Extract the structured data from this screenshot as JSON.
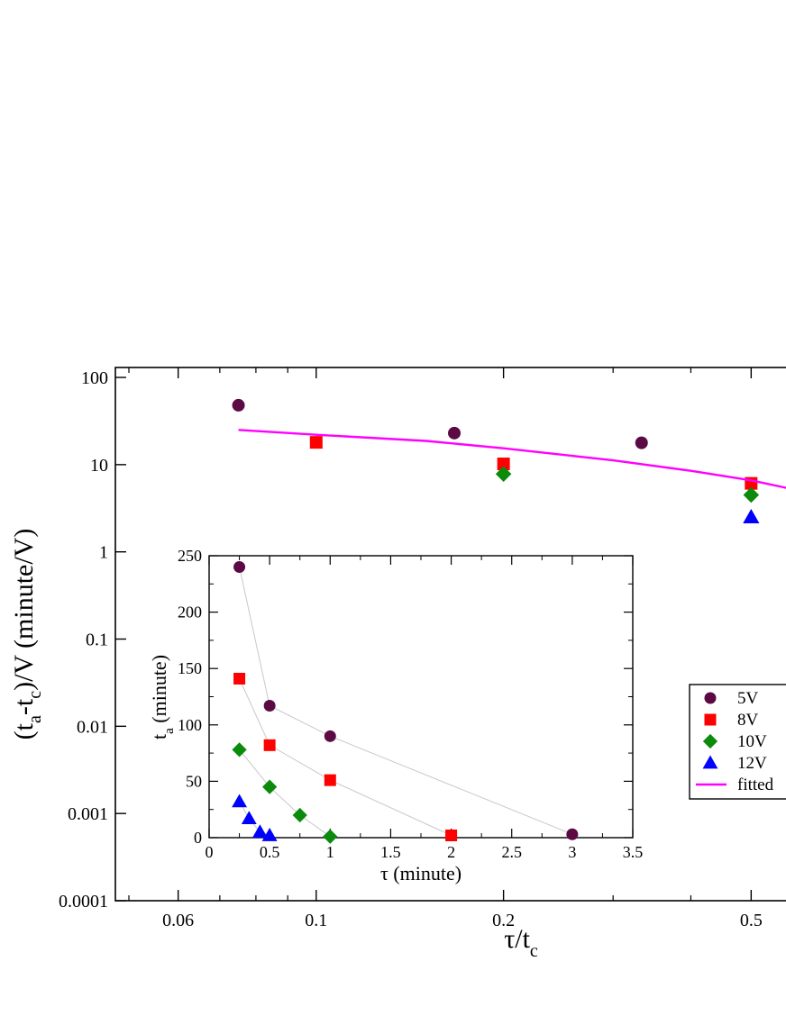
{
  "colors": {
    "5V": "#5c0a44",
    "8V": "#ff0000",
    "10V": "#0b8a0b",
    "12V": "#0000ff",
    "fitted": "#ff00ff",
    "guide": "#c8c8c8"
  },
  "chart_data": [
    {
      "id": "main",
      "type": "scatter",
      "xscale": "log",
      "yscale": "log",
      "xlim": [
        0.04756,
        0.6
      ],
      "ylim": [
        0.0001,
        130
      ],
      "xticks": [
        {
          "value": 0.06,
          "label": "0.06"
        },
        {
          "value": 0.1,
          "label": "0.1"
        },
        {
          "value": 0.2,
          "label": "0.2"
        },
        {
          "value": 0.5,
          "label": "0.5"
        }
      ],
      "yticks": [
        {
          "value": 100,
          "label": "100"
        },
        {
          "value": 10,
          "label": "10"
        },
        {
          "value": 1,
          "label": "1"
        },
        {
          "value": 0.1,
          "label": "0.1"
        },
        {
          "value": 0.01,
          "label": "0.01"
        },
        {
          "value": 0.001,
          "label": "0.001"
        },
        {
          "value": 0.0001,
          "label": "0.0001"
        }
      ],
      "xlabel": {
        "main": "τ/t",
        "sub": "c"
      },
      "ylabel": {
        "p1": "(t",
        "sub1": "a",
        "p2": "-t",
        "sub2": "c",
        "p3": ")/V (minute/V)"
      },
      "series": [
        {
          "name": "5V",
          "marker": "circle",
          "points": [
            [
              0.075,
              48
            ],
            [
              0.1667,
              23
            ],
            [
              0.3333,
              17.8
            ]
          ]
        },
        {
          "name": "8V",
          "marker": "square",
          "points": [
            [
              0.1,
              18
            ],
            [
              0.2,
              10.2
            ],
            [
              0.5,
              6.1
            ]
          ]
        },
        {
          "name": "10V",
          "marker": "diamond",
          "points": [
            [
              0.2,
              7.8
            ],
            [
              0.5,
              4.5
            ]
          ]
        },
        {
          "name": "12V",
          "marker": "triangle",
          "points": [
            [
              0.5,
              2.5
            ]
          ]
        },
        {
          "name": "fitted",
          "marker": "line",
          "points": [
            [
              0.075,
              25
            ],
            [
              0.1,
              22
            ],
            [
              0.15,
              18.7
            ],
            [
              0.2,
              15.4
            ],
            [
              0.3,
              11.2
            ],
            [
              0.4,
              8.5
            ],
            [
              0.5,
              6.6
            ],
            [
              0.6,
              5.0
            ]
          ]
        }
      ],
      "legend": [
        "5V",
        "8V",
        "10V",
        "12V",
        "fitted"
      ],
      "legend_position": "right"
    },
    {
      "id": "inset",
      "type": "scatter",
      "xlim": [
        0,
        3.5
      ],
      "ylim": [
        0,
        250
      ],
      "xticks": [
        {
          "value": 0,
          "label": "0"
        },
        {
          "value": 0.5,
          "label": "0.5"
        },
        {
          "value": 1,
          "label": "1"
        },
        {
          "value": 1.5,
          "label": "1.5"
        },
        {
          "value": 2,
          "label": "2"
        },
        {
          "value": 2.5,
          "label": "2.5"
        },
        {
          "value": 3,
          "label": "3"
        },
        {
          "value": 3.5,
          "label": "3.5"
        }
      ],
      "yticks": [
        {
          "value": 0,
          "label": "0"
        },
        {
          "value": 50,
          "label": "50"
        },
        {
          "value": 100,
          "label": "100"
        },
        {
          "value": 150,
          "label": "150"
        },
        {
          "value": 200,
          "label": "200"
        },
        {
          "value": 250,
          "label": "250"
        }
      ],
      "xlabel": "τ (minute)",
      "ylabel": {
        "p1": "t",
        "sub": "a",
        "p2": " (minute)"
      },
      "series": [
        {
          "name": "5V",
          "marker": "circle",
          "points": [
            [
              0.25,
              240
            ],
            [
              0.5,
              117
            ],
            [
              1.0,
              90
            ],
            [
              3.0,
              3
            ]
          ]
        },
        {
          "name": "8V",
          "marker": "square",
          "points": [
            [
              0.25,
              141
            ],
            [
              0.5,
              82
            ],
            [
              1.0,
              51
            ],
            [
              2.0,
              2
            ]
          ]
        },
        {
          "name": "10V",
          "marker": "diamond",
          "points": [
            [
              0.25,
              78
            ],
            [
              0.5,
              45
            ],
            [
              0.75,
              20
            ],
            [
              1.0,
              1
            ]
          ]
        },
        {
          "name": "12V",
          "marker": "triangle",
          "points": [
            [
              0.25,
              32
            ],
            [
              0.33,
              17
            ],
            [
              0.42,
              5
            ],
            [
              0.5,
              2
            ]
          ]
        }
      ]
    }
  ]
}
